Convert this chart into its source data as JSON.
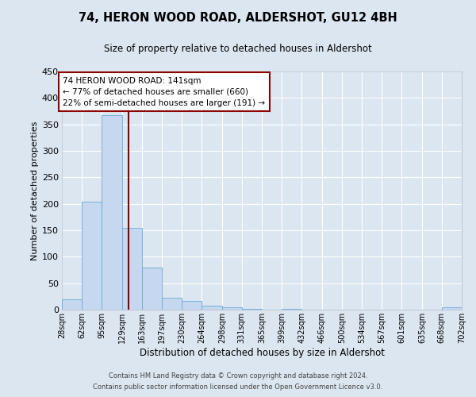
{
  "title": "74, HERON WOOD ROAD, ALDERSHOT, GU12 4BH",
  "subtitle": "Size of property relative to detached houses in Aldershot",
  "xlabel": "Distribution of detached houses by size in Aldershot",
  "ylabel": "Number of detached properties",
  "bar_color": "#c5d8ef",
  "bar_edge_color": "#6aaad4",
  "bg_color": "#dce6f1",
  "grid_color": "#ffffff",
  "bin_edges": [
    28,
    62,
    95,
    129,
    163,
    197,
    230,
    264,
    298,
    331,
    365,
    399,
    432,
    466,
    500,
    534,
    567,
    601,
    635,
    668,
    702
  ],
  "bin_labels": [
    "28sqm",
    "62sqm",
    "95sqm",
    "129sqm",
    "163sqm",
    "197sqm",
    "230sqm",
    "264sqm",
    "298sqm",
    "331sqm",
    "365sqm",
    "399sqm",
    "432sqm",
    "466sqm",
    "500sqm",
    "534sqm",
    "567sqm",
    "601sqm",
    "635sqm",
    "668sqm",
    "702sqm"
  ],
  "counts": [
    19,
    204,
    367,
    155,
    79,
    23,
    16,
    8,
    5,
    1,
    0,
    2,
    0,
    0,
    0,
    0,
    0,
    0,
    0,
    4
  ],
  "vline_x": 141,
  "vline_color": "#8b0000",
  "annotation_title": "74 HERON WOOD ROAD: 141sqm",
  "annotation_line1": "← 77% of detached houses are smaller (660)",
  "annotation_line2": "22% of semi-detached houses are larger (191) →",
  "annotation_box_color": "#ffffff",
  "annotation_box_edge": "#8b0000",
  "ylim": [
    0,
    450
  ],
  "yticks": [
    0,
    50,
    100,
    150,
    200,
    250,
    300,
    350,
    400,
    450
  ],
  "footer1": "Contains HM Land Registry data © Crown copyright and database right 2024.",
  "footer2": "Contains public sector information licensed under the Open Government Licence v3.0."
}
